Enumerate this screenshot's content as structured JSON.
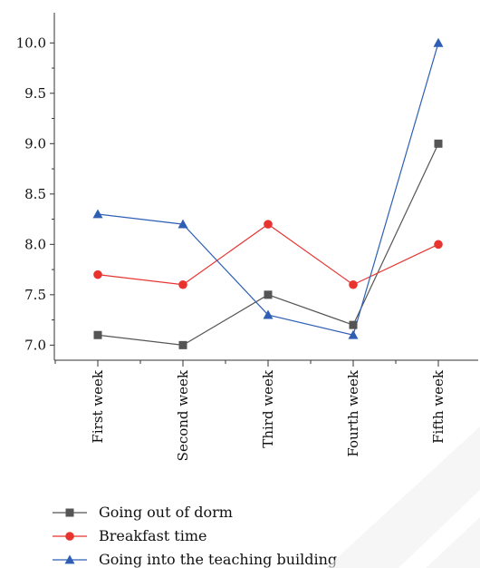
{
  "chart_data": {
    "type": "line",
    "categories": [
      "First week",
      "Second week",
      "Third week",
      "Fourth week",
      "Fifth week"
    ],
    "series": [
      {
        "name": "Going out of dorm",
        "values": [
          7.1,
          7.0,
          7.5,
          7.2,
          9.0
        ],
        "color": "#555555",
        "marker": "square"
      },
      {
        "name": "Breakfast time",
        "values": [
          7.7,
          7.6,
          8.2,
          7.6,
          8.0
        ],
        "color": "#e8332f",
        "marker": "circle"
      },
      {
        "name": "Going into the teaching building",
        "values": [
          8.3,
          8.2,
          7.3,
          7.1,
          10.0
        ],
        "color": "#2e5fb5",
        "marker": "triangle"
      }
    ],
    "ylim": [
      6.85,
      10.3
    ],
    "yticks": [
      "7.0",
      "7.5",
      "8.0",
      "8.5",
      "9.0",
      "9.5",
      "10.0"
    ],
    "title": "",
    "xlabel": "",
    "ylabel": "",
    "grid": false,
    "legend_position": "bottom-left"
  }
}
